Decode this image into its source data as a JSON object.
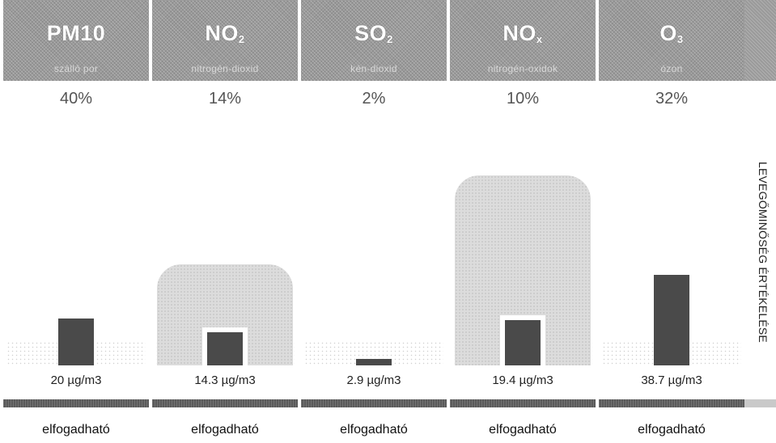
{
  "side_title": "LEVEGŐMINŐSÉG ÉRTÉKELÉSE",
  "chart_data": {
    "type": "bar",
    "title": "LEVEGŐMINŐSÉG ÉRTÉKELÉSE",
    "categories": [
      "PM10",
      "NO2",
      "SO2",
      "NOx",
      "O3"
    ],
    "pollutants": [
      {
        "name": "PM10",
        "sub": "",
        "subtitle": "szálló por",
        "percent": "40%",
        "value": 20,
        "value_label": "20 µg/m3",
        "limit": 0,
        "status": "elfogadható"
      },
      {
        "name": "NO",
        "sub": "2",
        "subtitle": "nitrogén-dioxid",
        "percent": "14%",
        "value": 14.3,
        "value_label": "14.3 µg/m3",
        "limit": 100,
        "status": "elfogadható"
      },
      {
        "name": "SO",
        "sub": "2",
        "subtitle": "kén-dioxid",
        "percent": "2%",
        "value": 2.9,
        "value_label": "2.9 µg/m3",
        "limit": 0,
        "status": "elfogadható"
      },
      {
        "name": "NO",
        "sub": "x",
        "subtitle": "nitrogén-oxidok",
        "percent": "10%",
        "value": 19.4,
        "value_label": "19.4 µg/m3",
        "limit": 200,
        "status": "elfogadható"
      },
      {
        "name": "O",
        "sub": "3",
        "subtitle": "ózon",
        "percent": "32%",
        "value": 38.7,
        "value_label": "38.7 µg/m3",
        "limit": 0,
        "status": "elfogadható"
      }
    ],
    "colors": {
      "header": "#9a9a9a",
      "bar": "#4a4a4a",
      "band": "#5a5a5a",
      "limit_area": "#dcdcdc"
    }
  }
}
